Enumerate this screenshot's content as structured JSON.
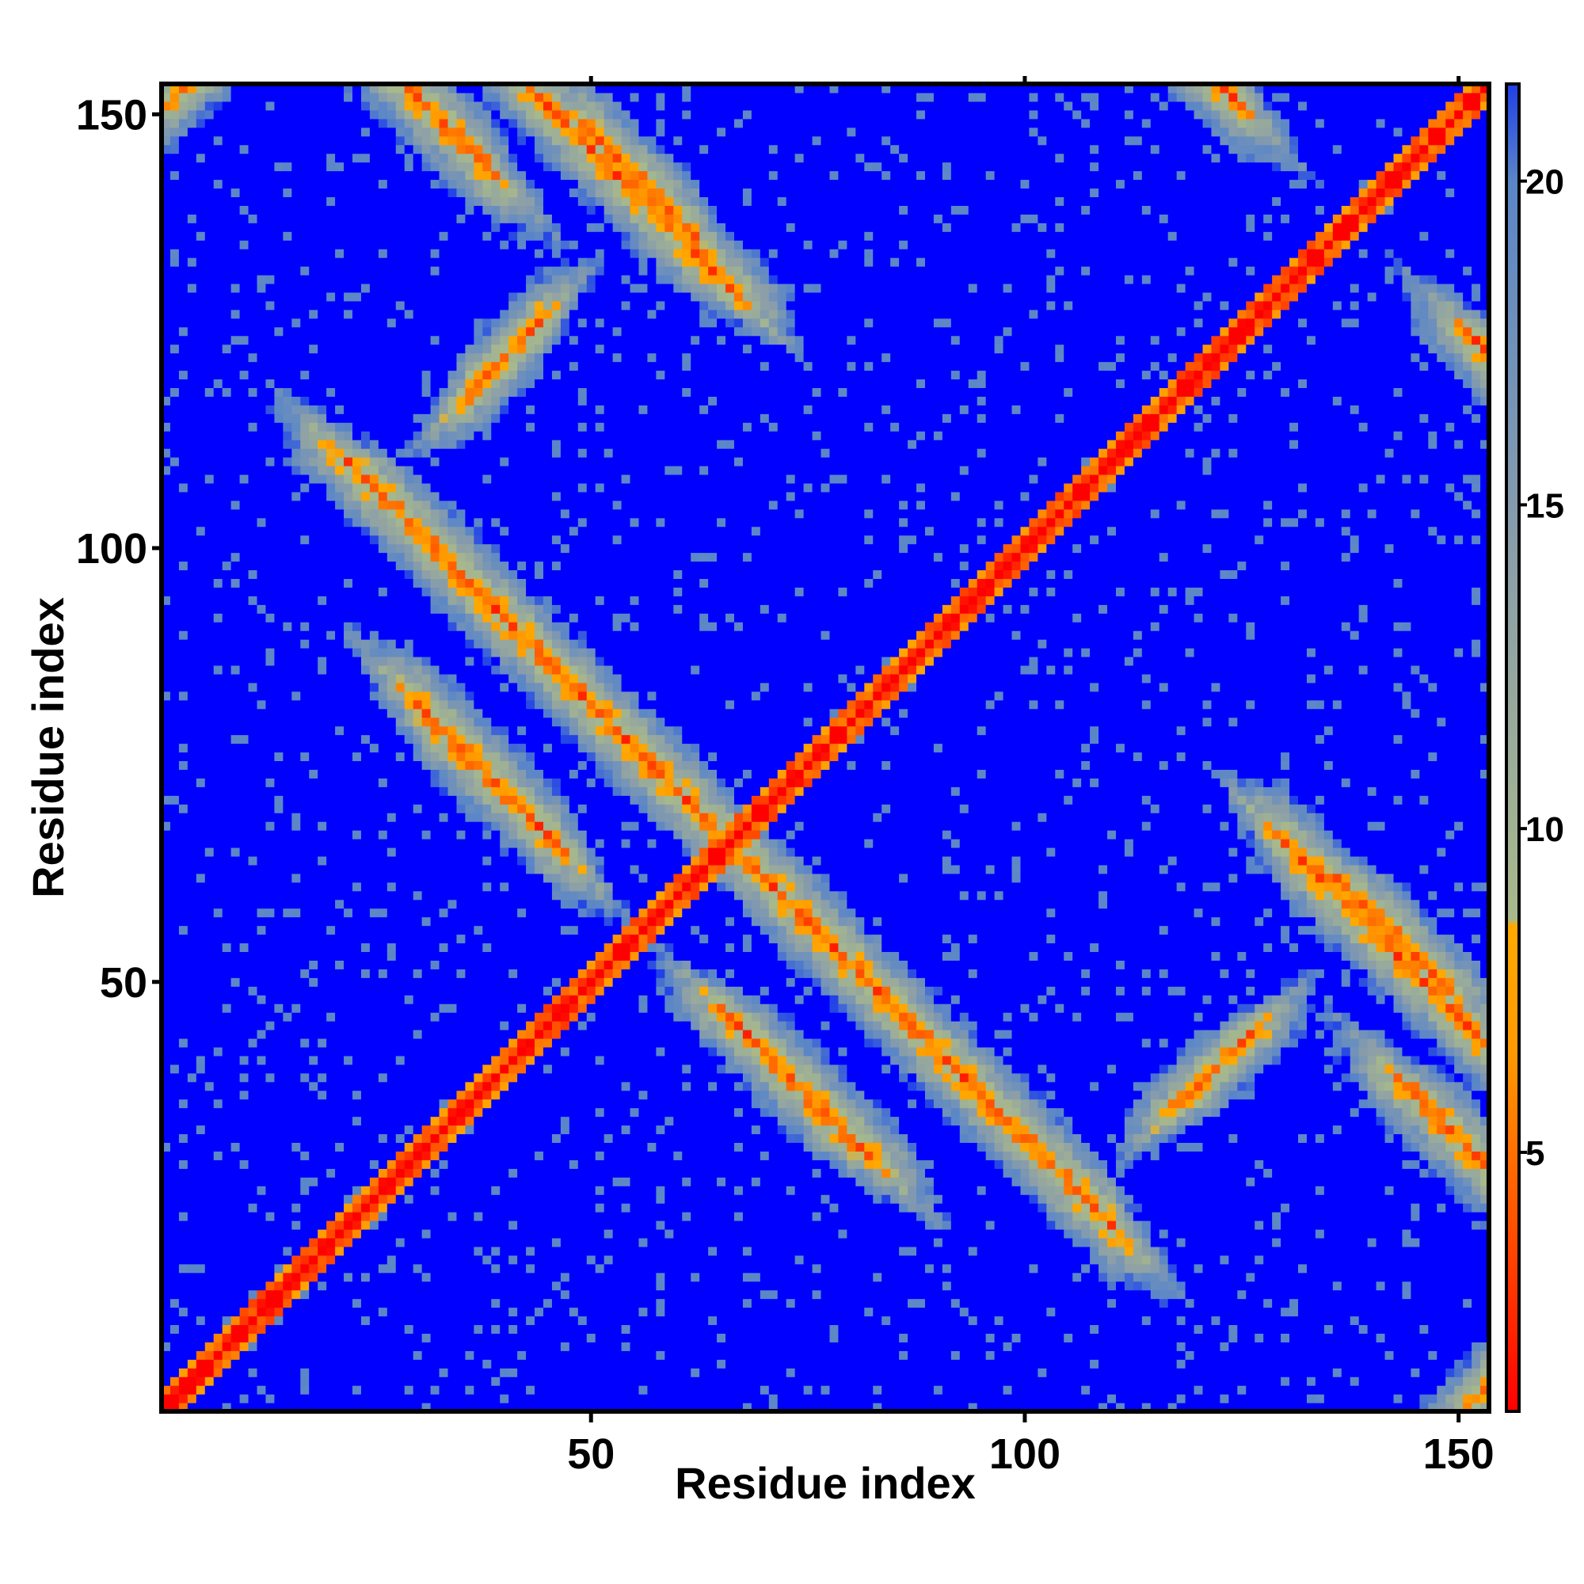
{
  "chart_data": {
    "type": "heatmap",
    "title": "",
    "xlabel": "Residue index",
    "ylabel": "Residue index",
    "n_residues": 153,
    "xlim": [
      1,
      153
    ],
    "ylim": [
      1,
      153
    ],
    "x_ticks": [
      50,
      100,
      150
    ],
    "y_ticks": [
      50,
      100,
      150
    ],
    "x_tick_labels": [
      "50",
      "100",
      "150"
    ],
    "y_tick_labels": [
      "50",
      "100",
      "150"
    ],
    "colorbar": {
      "range": [
        1,
        21.5
      ],
      "ticks": [
        5,
        10,
        15,
        20
      ],
      "tick_labels": [
        "5",
        "10",
        "15",
        "20"
      ],
      "colors": [
        {
          "value": 1,
          "color": "#ff0000"
        },
        {
          "value": 6.5,
          "color": "#ff9900"
        },
        {
          "value": 8.5,
          "color": "#ffaa00"
        },
        {
          "value": 8.6,
          "color": "#a8b98b"
        },
        {
          "value": 14,
          "color": "#8c9fa8"
        },
        {
          "value": 20,
          "color": "#5a86c8"
        },
        {
          "value": 21.5,
          "color": "#1f3fe8"
        }
      ],
      "saturate_color": "#0000ff",
      "saturate_above": 21.5
    },
    "grid": false,
    "legend": "colorbar-right",
    "description_of_values": "Symmetric residue-residue distance matrix (Angstrom-like units); main diagonal near 1, off-diagonal contacts in orange/red, far pairs saturated blue",
    "contact_bands": [
      {
        "kind": "anti",
        "i_start": 36,
        "i_end": 110,
        "sum": 132
      },
      {
        "kind": "anti",
        "i_start": 2,
        "i_end": 38,
        "sum": 182
      },
      {
        "kind": "anti",
        "i_start": 30,
        "i_end": 46,
        "sum": 112
      },
      {
        "kind": "anti",
        "i_start": 50,
        "i_end": 62,
        "sum": 198
      },
      {
        "kind": "anti",
        "i_start": 112,
        "i_end": 124,
        "sum": 276
      },
      {
        "kind": "anti",
        "i_start": 130,
        "i_end": 152,
        "sum": 196
      },
      {
        "kind": "parallel",
        "i_start": 2,
        "i_end": 10,
        "offset": 150
      },
      {
        "kind": "parallel",
        "i_start": 36,
        "i_end": 44,
        "offset": 82
      }
    ]
  }
}
